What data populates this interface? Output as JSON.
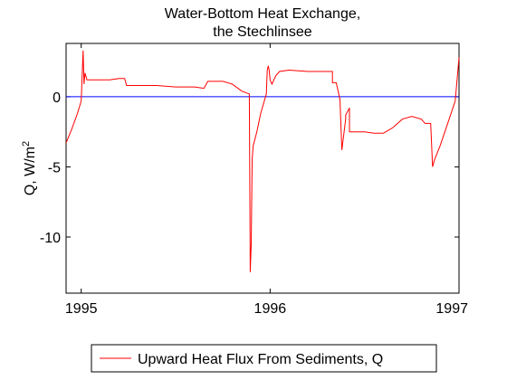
{
  "chart_data": {
    "type": "line",
    "title": [
      "Water-Bottom Heat Exchange,",
      "the Stechlinsee"
    ],
    "ylabel": "Q, W/m",
    "ylabel_superscript": "2",
    "xlim": [
      1994.92,
      1997.0
    ],
    "ylim": [
      -14,
      3.8
    ],
    "x_ticks": [
      1995,
      1996,
      1997
    ],
    "x_tick_labels": [
      "1995",
      "1996",
      "1997"
    ],
    "y_ticks": [
      0,
      -5,
      -10
    ],
    "y_tick_labels": [
      "0",
      "-5",
      "-10"
    ],
    "grid": false,
    "legend_position": "bottom-center",
    "colors": {
      "series": "#ff0000",
      "zero_line": "#0000ff"
    },
    "reference_line": {
      "y": 0,
      "color": "#0000ff"
    },
    "series": [
      {
        "name": "Upward Heat Flux From Sediments, Q",
        "color": "#ff0000",
        "x": [
          1994.92,
          1994.95,
          1994.98,
          1995.0,
          1995.01,
          1995.015,
          1995.02,
          1995.03,
          1995.05,
          1995.1,
          1995.15,
          1995.2,
          1995.23,
          1995.24,
          1995.3,
          1995.4,
          1995.5,
          1995.6,
          1995.65,
          1995.67,
          1995.7,
          1995.75,
          1995.8,
          1995.85,
          1995.87,
          1995.89,
          1995.895,
          1995.9,
          1995.905,
          1995.91,
          1995.93,
          1995.95,
          1995.98,
          1995.985,
          1995.99,
          1995.995,
          1996.0,
          1996.01,
          1996.03,
          1996.05,
          1996.1,
          1996.2,
          1996.3,
          1996.33,
          1996.33,
          1996.34,
          1996.35,
          1996.37,
          1996.38,
          1996.4,
          1996.4,
          1996.42,
          1996.42,
          1996.5,
          1996.55,
          1996.6,
          1996.65,
          1996.7,
          1996.75,
          1996.8,
          1996.82,
          1996.83,
          1996.84,
          1996.85,
          1996.86,
          1996.87,
          1996.9,
          1996.95,
          1996.98,
          1997.0
        ],
        "y": [
          -3.3,
          -2.3,
          -1.2,
          -0.3,
          3.3,
          0.9,
          1.7,
          1.2,
          1.2,
          1.2,
          1.2,
          1.3,
          1.3,
          0.8,
          0.8,
          0.8,
          0.7,
          0.7,
          0.6,
          1.1,
          1.1,
          1.1,
          0.9,
          0.4,
          0.3,
          0.2,
          -12.5,
          -10.5,
          -4.5,
          -3.5,
          -2.5,
          -1.2,
          0.2,
          1.9,
          2.2,
          1.9,
          1.2,
          0.9,
          1.5,
          1.8,
          1.9,
          1.8,
          1.8,
          1.8,
          1.0,
          1.0,
          1.0,
          -0.2,
          -3.8,
          -1.6,
          -1.3,
          -0.8,
          -2.5,
          -2.5,
          -2.6,
          -2.6,
          -2.2,
          -1.6,
          -1.4,
          -1.6,
          -1.9,
          -1.9,
          -1.9,
          -1.9,
          -5.0,
          -4.5,
          -3.5,
          -1.5,
          -0.3,
          2.8
        ]
      }
    ],
    "legend": {
      "entries": [
        "Upward Heat Flux From Sediments, Q"
      ]
    }
  }
}
